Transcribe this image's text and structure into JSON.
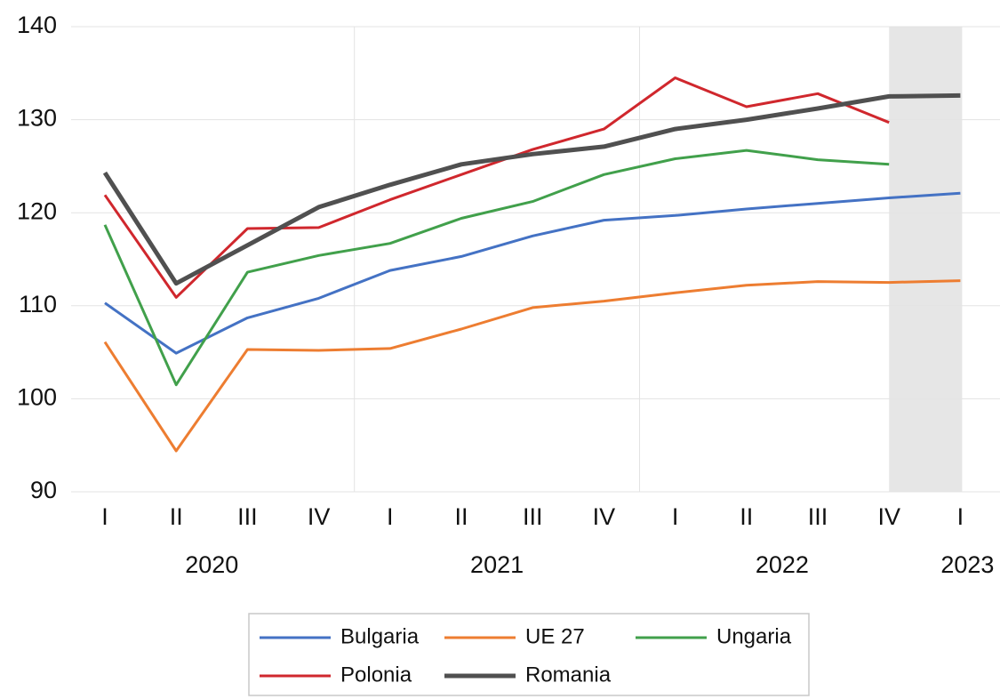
{
  "chart_data": {
    "type": "line",
    "categories": [
      "I",
      "II",
      "III",
      "IV",
      "I",
      "II",
      "III",
      "IV",
      "I",
      "II",
      "III",
      "IV",
      "I"
    ],
    "groups": [
      {
        "label": "2020",
        "size": 4
      },
      {
        "label": "2021",
        "size": 4
      },
      {
        "label": "2022",
        "size": 4
      },
      {
        "label": "2023",
        "size": 1
      }
    ],
    "highlight": [
      11,
      12
    ],
    "series": [
      {
        "name": "Bulgaria",
        "color": "#4472c4",
        "values": [
          110.3,
          104.9,
          108.7,
          110.8,
          113.8,
          115.3,
          117.5,
          119.2,
          119.7,
          120.4,
          121.0,
          121.6,
          122.1
        ]
      },
      {
        "name": "UE 27",
        "color": "#ed7d31",
        "values": [
          106.1,
          94.4,
          105.3,
          105.2,
          105.4,
          107.5,
          109.8,
          110.5,
          111.4,
          112.2,
          112.6,
          112.5,
          112.7
        ]
      },
      {
        "name": "Ungaria",
        "color": "#41a04b",
        "values": [
          118.7,
          101.5,
          113.6,
          115.4,
          116.7,
          119.4,
          121.2,
          124.1,
          125.8,
          126.7,
          125.7,
          125.2,
          null
        ]
      },
      {
        "name": "Polonia",
        "color": "#d0272d",
        "values": [
          121.9,
          110.9,
          118.3,
          118.4,
          121.4,
          124.1,
          126.8,
          129.0,
          134.5,
          131.4,
          132.8,
          129.7,
          null
        ]
      },
      {
        "name": "Romania",
        "color": "#505050",
        "values": [
          124.3,
          112.4,
          116.5,
          120.6,
          123.0,
          125.2,
          126.3,
          127.1,
          129.0,
          130.0,
          131.2,
          132.5,
          132.6
        ]
      }
    ],
    "ylim": [
      90,
      140
    ],
    "yticks": [
      90,
      100,
      110,
      120,
      130,
      140
    ],
    "grid": true,
    "legend": "bottom"
  }
}
